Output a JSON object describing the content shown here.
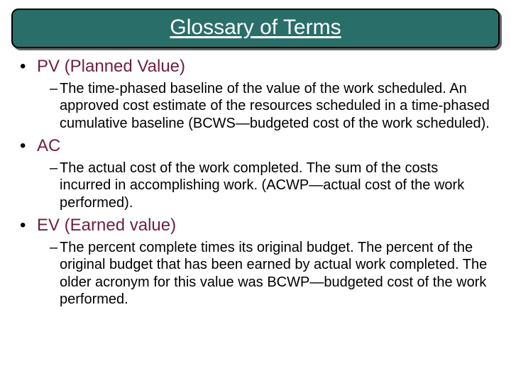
{
  "title": "Glossary of Terms",
  "colors": {
    "title_bg": "#2a6e6a",
    "title_border": "#000000",
    "title_shadow": "#666666",
    "title_text": "#ffffff",
    "term_text": "#6d1f44",
    "body_text": "#000000",
    "page_bg": "#ffffff"
  },
  "typography": {
    "title_fontsize_pt": 22,
    "term_fontsize_pt": 18,
    "def_fontsize_pt": 15,
    "font_family": "Arial"
  },
  "terms": [
    {
      "label": "PV (Planned Value)",
      "definition": "The time-phased baseline of the value of the work scheduled. An approved cost estimate of the resources scheduled in a time-phased cumulative baseline (BCWS—budgeted cost of the work scheduled)."
    },
    {
      "label": "AC",
      "definition": "The actual cost of the work completed. The sum of the costs incurred in accomplishing work. (ACWP—actual cost of the work performed)."
    },
    {
      "label": "EV (Earned value)",
      "definition": "The percent complete times its original budget. The percent of the original budget that has been earned by actual work completed. The older acronym for this value was BCWP—budgeted cost of the work performed."
    }
  ]
}
